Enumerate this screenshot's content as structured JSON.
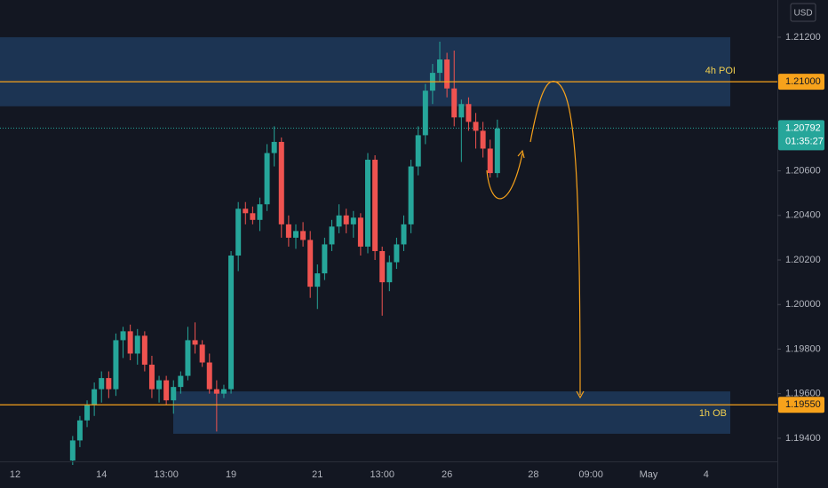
{
  "chart_data": {
    "type": "candlestick",
    "currency": "USD",
    "up_color": "#26a69a",
    "down_color": "#ef5350",
    "ylim": [
      1.19296,
      1.21367
    ],
    "yticks": [
      {
        "value": 1.194,
        "label": "1.19400"
      },
      {
        "value": 1.196,
        "label": "1.19600"
      },
      {
        "value": 1.198,
        "label": "1.19800"
      },
      {
        "value": 1.2,
        "label": "1.20000"
      },
      {
        "value": 1.202,
        "label": "1.20200"
      },
      {
        "value": 1.204,
        "label": "1.20400"
      },
      {
        "value": 1.206,
        "label": "1.20600"
      },
      {
        "value": 1.212,
        "label": "1.21200"
      }
    ],
    "categories": [
      null,
      null,
      "12",
      null,
      null,
      null,
      null,
      null,
      null,
      null,
      null,
      null,
      null,
      null,
      "14",
      null,
      null,
      null,
      null,
      null,
      null,
      null,
      null,
      "13:00",
      null,
      null,
      null,
      null,
      null,
      null,
      null,
      null,
      "19",
      null,
      null,
      null,
      null,
      null,
      null,
      null,
      null,
      null,
      null,
      null,
      "21",
      null,
      null,
      null,
      null,
      null,
      null,
      null,
      null,
      "13:00",
      null,
      null,
      null,
      null,
      null,
      null,
      null,
      null,
      "26",
      null,
      null,
      null,
      null,
      null,
      null,
      null,
      null,
      null,
      null,
      null,
      "28",
      null,
      null,
      null,
      null,
      null,
      null,
      null,
      "09:00",
      null,
      null,
      null,
      null,
      null,
      null,
      null,
      "May",
      null,
      null,
      null,
      null,
      null,
      null,
      null,
      "4",
      null,
      null,
      null,
      null,
      null,
      null,
      null,
      null,
      null
    ],
    "ohlc": [
      null,
      null,
      null,
      null,
      null,
      null,
      null,
      null,
      null,
      null,
      [
        1.193,
        1.1941,
        1.1928,
        1.1939
      ],
      [
        1.1939,
        1.195,
        1.1936,
        1.1948
      ],
      [
        1.1948,
        1.1957,
        1.1945,
        1.1955
      ],
      [
        1.1955,
        1.1965,
        1.195,
        1.1962
      ],
      [
        1.1962,
        1.197,
        1.1956,
        1.1967
      ],
      [
        1.1967,
        1.197,
        1.1958,
        1.1962
      ],
      [
        1.1962,
        1.1987,
        1.1959,
        1.1984
      ],
      [
        1.1984,
        1.199,
        1.1976,
        1.1988
      ],
      [
        1.1988,
        1.1991,
        1.1975,
        1.1978
      ],
      [
        1.1978,
        1.1989,
        1.1973,
        1.1986
      ],
      [
        1.1986,
        1.1988,
        1.197,
        1.1973
      ],
      [
        1.1973,
        1.1977,
        1.1958,
        1.1962
      ],
      [
        1.1962,
        1.1968,
        1.1956,
        1.1966
      ],
      [
        1.1966,
        1.1968,
        1.1955,
        1.1957
      ],
      [
        1.1957,
        1.1966,
        1.1951,
        1.1963
      ],
      [
        1.1963,
        1.197,
        1.196,
        1.1968
      ],
      [
        1.1968,
        1.199,
        1.1966,
        1.1984
      ],
      [
        1.1984,
        1.1992,
        1.1978,
        1.1982
      ],
      [
        1.1982,
        1.1984,
        1.1972,
        1.1974
      ],
      [
        1.1974,
        1.1978,
        1.196,
        1.1962
      ],
      [
        1.1962,
        1.1966,
        1.1943,
        1.196
      ],
      [
        1.196,
        1.1964,
        1.1958,
        1.1962
      ],
      [
        1.1962,
        1.2024,
        1.196,
        1.2022
      ],
      [
        1.2022,
        1.2046,
        1.2015,
        1.2043
      ],
      [
        1.2043,
        1.2046,
        1.2036,
        1.2041
      ],
      [
        1.2041,
        1.2044,
        1.2036,
        1.2038
      ],
      [
        1.2038,
        1.2048,
        1.2033,
        1.2045
      ],
      [
        1.2045,
        1.2072,
        1.2042,
        1.2068
      ],
      [
        1.2068,
        1.208,
        1.2062,
        1.2073
      ],
      [
        1.2073,
        1.2075,
        1.203,
        1.2036
      ],
      [
        1.2036,
        1.204,
        1.2026,
        1.203
      ],
      [
        1.203,
        1.2036,
        1.2025,
        1.2033
      ],
      [
        1.2033,
        1.2037,
        1.2026,
        1.2029
      ],
      [
        1.2029,
        1.2033,
        1.2003,
        1.2008
      ],
      [
        1.2008,
        1.2018,
        1.1998,
        1.2014
      ],
      [
        1.2014,
        1.203,
        1.2011,
        1.2027
      ],
      [
        1.2027,
        1.2038,
        1.2024,
        1.2035
      ],
      [
        1.2035,
        1.2045,
        1.2032,
        1.204
      ],
      [
        1.204,
        1.2043,
        1.2032,
        1.2036
      ],
      [
        1.2036,
        1.2042,
        1.203,
        1.2039
      ],
      [
        1.2039,
        1.2041,
        1.2022,
        1.2026
      ],
      [
        1.2026,
        1.2068,
        1.2023,
        1.2065
      ],
      [
        1.2065,
        1.2067,
        1.202,
        1.2024
      ],
      [
        1.2024,
        1.2026,
        1.1995,
        1.201
      ],
      [
        1.201,
        1.2022,
        1.2006,
        1.2019
      ],
      [
        1.2019,
        1.203,
        1.2016,
        1.2027
      ],
      [
        1.2027,
        1.204,
        1.2024,
        1.2036
      ],
      [
        1.2036,
        1.2065,
        1.2032,
        1.2062
      ],
      [
        1.2062,
        1.208,
        1.2058,
        1.2076
      ],
      [
        1.2076,
        1.2099,
        1.2072,
        1.2096
      ],
      [
        1.2096,
        1.2108,
        1.209,
        1.2104
      ],
      [
        1.2104,
        1.2118,
        1.21,
        1.211
      ],
      [
        1.211,
        1.2113,
        1.2093,
        1.2097
      ],
      [
        1.2097,
        1.2114,
        1.208,
        1.2084
      ],
      [
        1.2084,
        1.2092,
        1.2064,
        1.209
      ],
      [
        1.209,
        1.2093,
        1.2078,
        1.2082
      ],
      [
        1.2082,
        1.2086,
        1.207,
        1.2078
      ],
      [
        1.2078,
        1.2082,
        1.2066,
        1.207
      ],
      [
        1.207,
        1.2074,
        1.2057,
        1.2059
      ],
      [
        1.2059,
        1.2083,
        1.2057,
        1.2079
      ],
      null,
      null,
      null,
      null,
      null,
      null,
      null,
      null,
      null,
      null,
      null,
      null,
      null,
      null,
      null,
      null,
      null,
      null,
      null,
      null,
      null,
      null,
      null,
      null,
      null,
      null,
      null,
      null,
      null,
      null,
      null,
      null,
      null,
      null,
      null,
      null,
      null,
      null
    ],
    "zones": [
      {
        "label": "4h POI",
        "top": 1.212,
        "bottom": 1.2089,
        "line": 1.21,
        "line_label": "1.21000"
      },
      {
        "label": "1h OB",
        "top": 1.1961,
        "bottom": 1.1942,
        "line": 1.1955,
        "line_label": "1.19550"
      }
    ],
    "zone_color": "#1e3a5c",
    "line_color": "#f7a21b",
    "last_price": {
      "value": 1.20792,
      "label": "1.20792",
      "countdown": "01:35:27"
    }
  }
}
